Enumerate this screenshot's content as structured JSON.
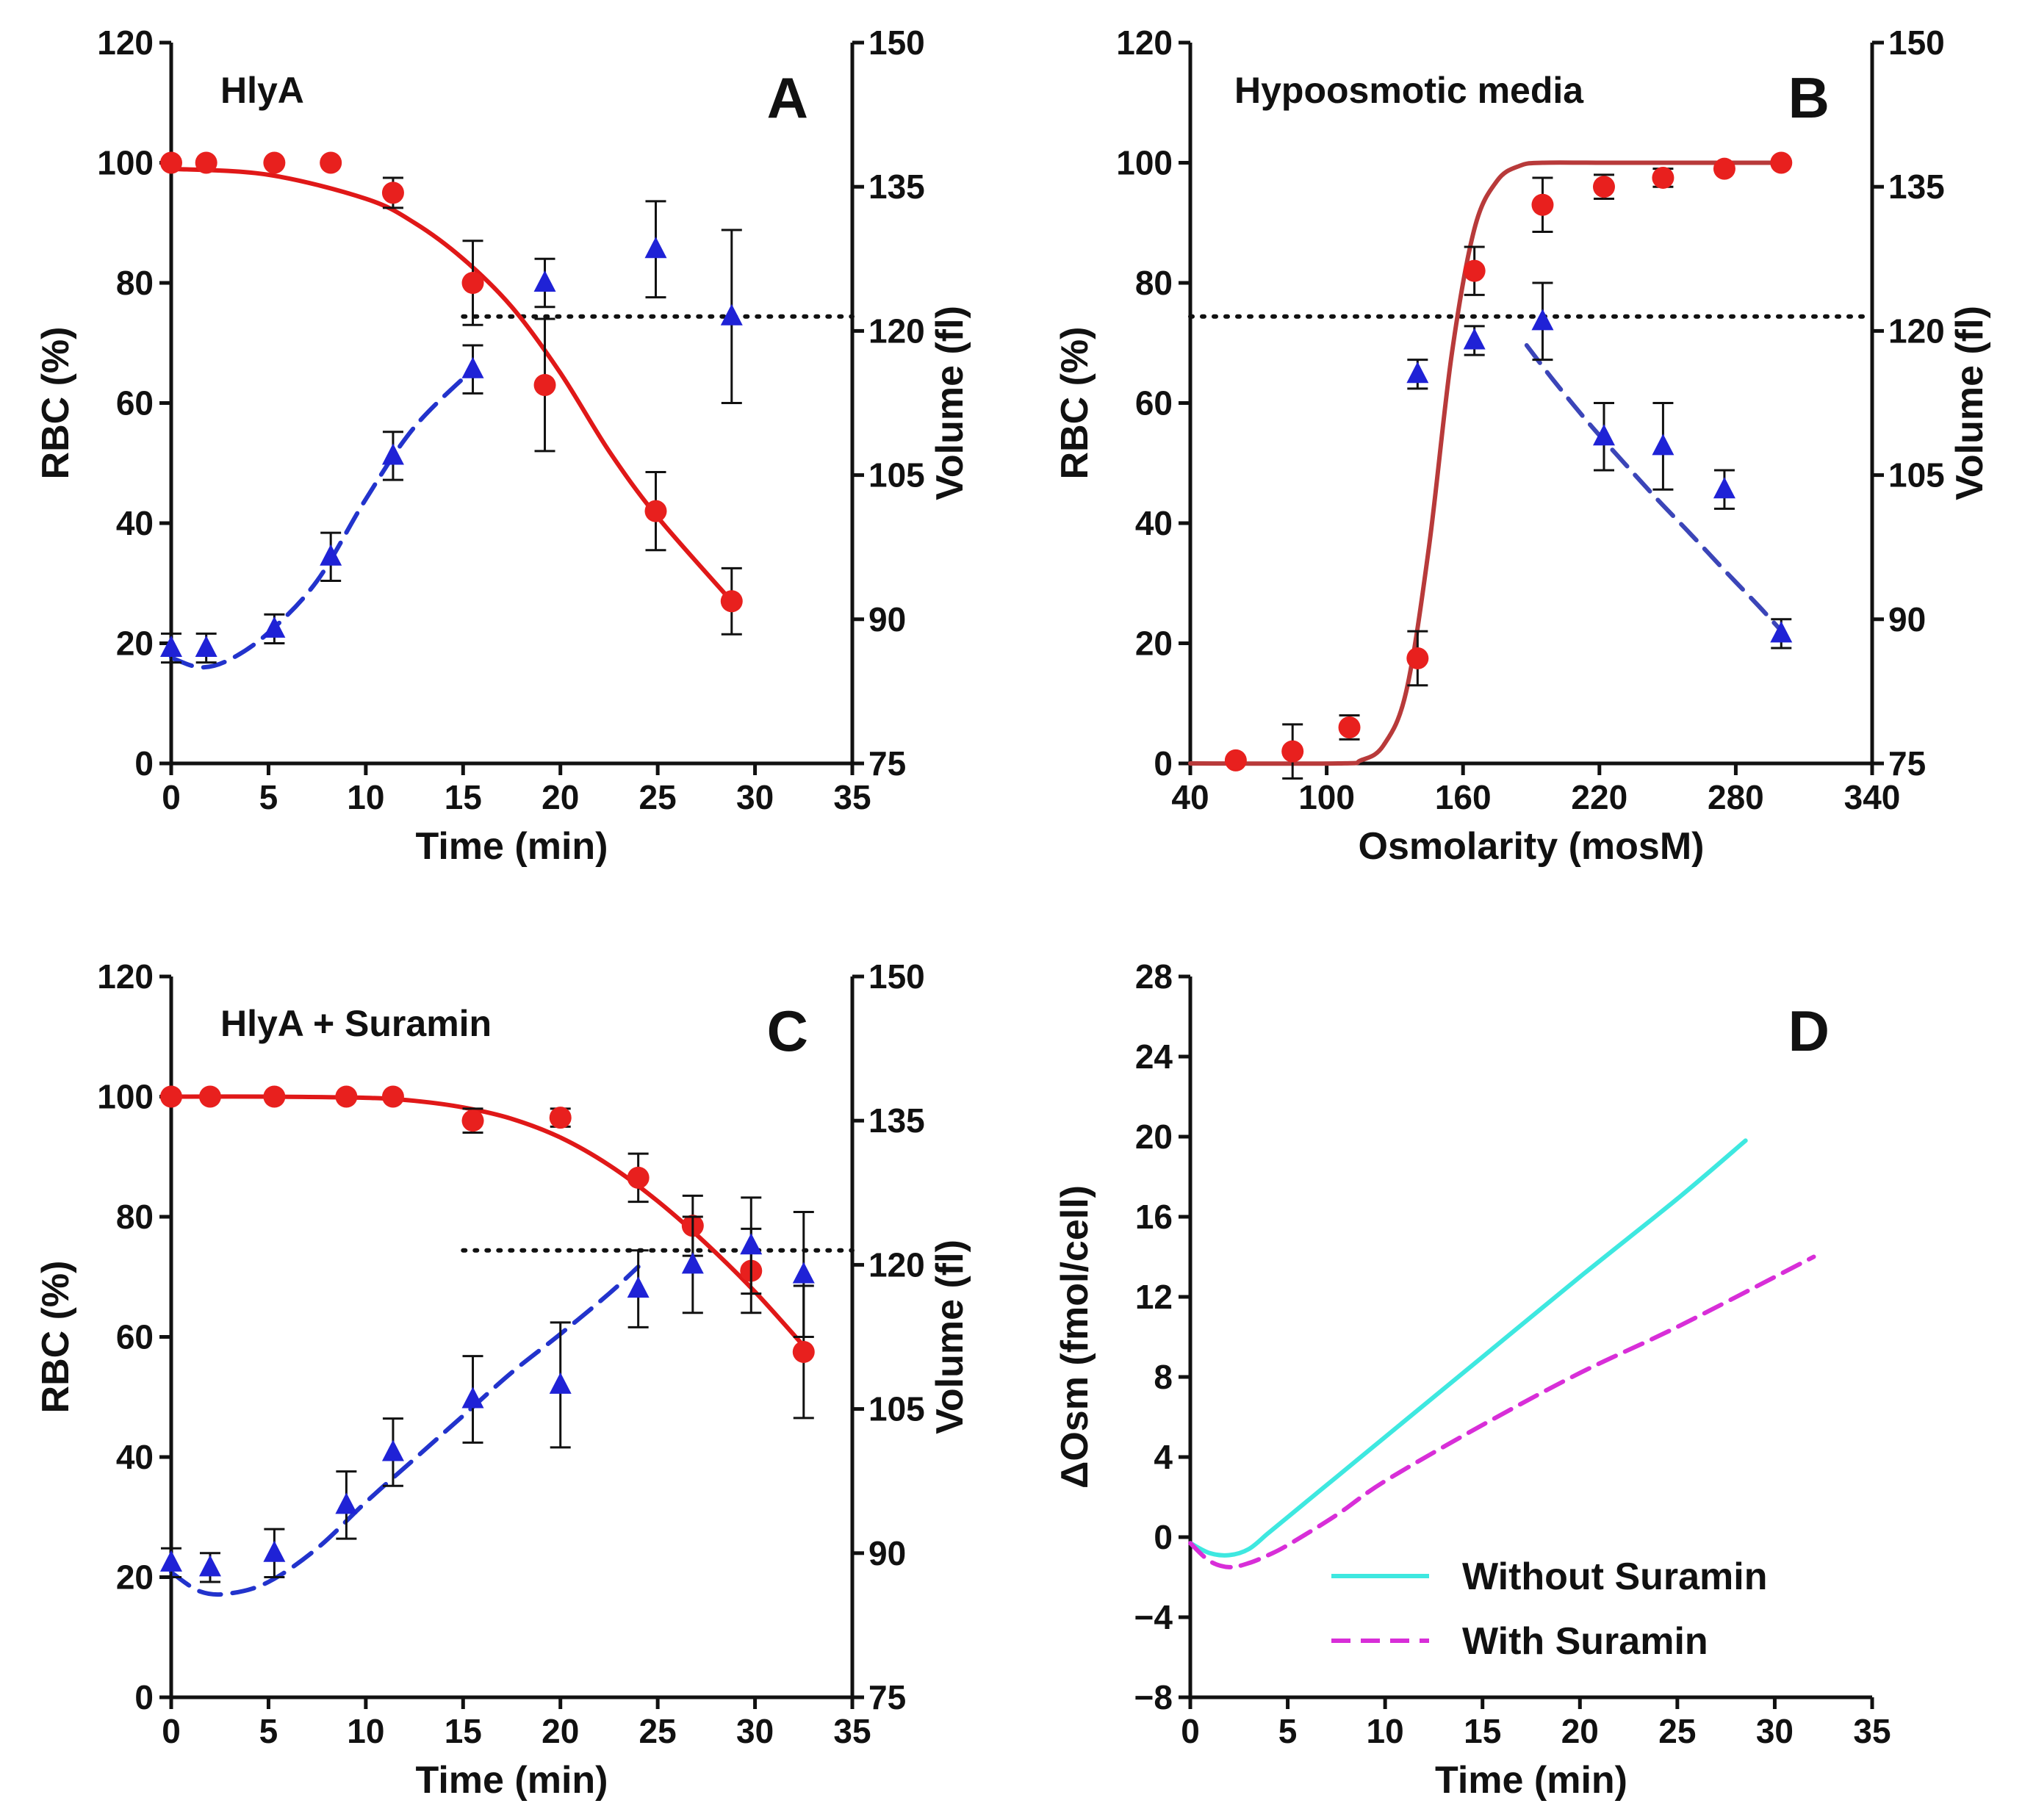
{
  "chart_data": [
    {
      "panel": "A",
      "type": "scatter",
      "title": "HlyA",
      "letter": "A",
      "xlabel": "Time (min)",
      "ylabel": "RBC (%)",
      "y2label": "Volume (fl)",
      "xlim": [
        0,
        35
      ],
      "xticks": [
        0,
        5,
        10,
        15,
        20,
        25,
        30,
        35
      ],
      "ylim": [
        0,
        120
      ],
      "yticks": [
        0,
        20,
        40,
        60,
        80,
        100,
        120
      ],
      "y2lim": [
        75,
        150
      ],
      "y2ticks": [
        75,
        90,
        105,
        120,
        135,
        150
      ],
      "series": [
        {
          "name": "RBC",
          "axis": "y",
          "marker": "circle",
          "color": "#e8201e",
          "x": [
            0,
            1.8,
            5.3,
            8.2,
            11.4,
            15.5,
            19.2,
            24.9,
            28.8
          ],
          "y": [
            100,
            100,
            100,
            100,
            95,
            80,
            63,
            42,
            27
          ],
          "err": [
            0,
            0,
            0,
            0,
            2.5,
            7,
            11,
            6.5,
            5.5
          ]
        },
        {
          "name": "Volume",
          "axis": "y2",
          "marker": "triangle",
          "color": "#1f22d6",
          "x": [
            0,
            1.8,
            5.3,
            8.2,
            11.4,
            15.5,
            19.2,
            24.9,
            28.8
          ],
          "y": [
            87,
            87,
            89,
            96.5,
            107,
            116,
            125,
            128.5,
            121.5
          ],
          "err": [
            1.5,
            1.5,
            1.5,
            2.5,
            2.5,
            2.5,
            2.5,
            5,
            9
          ]
        }
      ],
      "fits": [
        {
          "name": "RBC fit",
          "axis": "y",
          "style": "solid",
          "color": "#e01818",
          "x": [
            0,
            5,
            10,
            12.5,
            15,
            17.5,
            20,
            22.5,
            25,
            28.8
          ],
          "y": [
            99,
            98,
            94,
            90,
            84,
            76,
            65,
            52,
            41,
            27
          ]
        },
        {
          "name": "Volume fit",
          "axis": "y2",
          "style": "dashed",
          "color": "#2233cc",
          "x": [
            0,
            1.5,
            3,
            5,
            7.5,
            10,
            12.5,
            15.5
          ],
          "y": [
            86,
            85,
            85.8,
            88.6,
            94,
            102.5,
            110,
            116
          ]
        }
      ],
      "reference_line": {
        "axis": "y2",
        "value": 121.5,
        "x_from": 15,
        "x_to": 35,
        "style": "dotted"
      }
    },
    {
      "panel": "B",
      "type": "scatter",
      "title": "Hypoosmotic media",
      "letter": "B",
      "xlabel": "Osmolarity (mosM)",
      "ylabel": "RBC (%)",
      "y2label": "Volume (fl)",
      "xlim": [
        40,
        340
      ],
      "xticks": [
        40,
        100,
        160,
        220,
        280,
        340
      ],
      "ylim": [
        0,
        120
      ],
      "yticks": [
        0,
        20,
        40,
        60,
        80,
        100,
        120
      ],
      "y2lim": [
        75,
        150
      ],
      "y2ticks": [
        75,
        90,
        105,
        120,
        135,
        150
      ],
      "series": [
        {
          "name": "RBC",
          "axis": "y",
          "marker": "circle",
          "color": "#e8201e",
          "x": [
            60,
            85,
            110,
            140,
            165,
            195,
            222,
            248,
            275,
            300
          ],
          "y": [
            0.5,
            2,
            6,
            17.5,
            82,
            93,
            96,
            97.5,
            99,
            100
          ],
          "err": [
            0,
            4.5,
            2,
            4.5,
            4,
            4.5,
            2,
            1.5,
            0,
            0
          ]
        },
        {
          "name": "Volume",
          "axis": "y2",
          "marker": "triangle",
          "color": "#1f22d6",
          "x": [
            140,
            165,
            195,
            222,
            248,
            275,
            300
          ],
          "y": [
            115.5,
            119,
            121,
            109,
            108,
            103.5,
            88.5
          ],
          "err": [
            1.5,
            1.5,
            4,
            3.5,
            4.5,
            2,
            1.5
          ]
        }
      ],
      "fits": [
        {
          "name": "RBC fit",
          "axis": "y",
          "style": "solid",
          "color": "#b83a3a",
          "x": [
            40,
            105,
            115,
            125,
            135,
            145,
            155,
            165,
            175,
            185,
            195,
            220,
            250,
            300
          ],
          "y": [
            0,
            0,
            0.5,
            3,
            12,
            36,
            68,
            89,
            97,
            99.5,
            100,
            100,
            100,
            100
          ]
        },
        {
          "name": "Volume fit",
          "axis": "y2",
          "style": "dashed",
          "color": "#3b45b8",
          "x": [
            188,
            200,
            215,
            230,
            245,
            260,
            275,
            290,
            300
          ],
          "y": [
            118.5,
            114.8,
            110.5,
            106.5,
            102.6,
            98.9,
            95.1,
            91.4,
            88.8
          ]
        }
      ],
      "reference_line": {
        "axis": "y2",
        "value": 121.5,
        "x_from": 40,
        "x_to": 340,
        "style": "dotted"
      }
    },
    {
      "panel": "C",
      "type": "scatter",
      "title": "HlyA + Suramin",
      "letter": "C",
      "xlabel": "Time (min)",
      "ylabel": "RBC (%)",
      "y2label": "Volume (fl)",
      "xlim": [
        0,
        35
      ],
      "xticks": [
        0,
        5,
        10,
        15,
        20,
        25,
        30,
        35
      ],
      "ylim": [
        0,
        120
      ],
      "yticks": [
        0,
        20,
        40,
        60,
        80,
        100,
        120
      ],
      "y2lim": [
        75,
        150
      ],
      "y2ticks": [
        75,
        90,
        105,
        120,
        135,
        150
      ],
      "series": [
        {
          "name": "RBC",
          "axis": "y",
          "marker": "circle",
          "color": "#e8201e",
          "x": [
            0,
            2,
            5.3,
            9,
            11.4,
            15.5,
            20,
            24,
            26.8,
            29.8,
            32.5
          ],
          "y": [
            100,
            100,
            100,
            100,
            100,
            96,
            96.5,
            86.5,
            78.5,
            71,
            57.5
          ],
          "err": [
            0,
            0,
            0,
            0,
            0,
            2,
            1.5,
            4,
            5,
            7,
            11
          ]
        },
        {
          "name": "Volume",
          "axis": "y2",
          "marker": "triangle",
          "color": "#1f22d6",
          "x": [
            0,
            2,
            5.3,
            9,
            11.4,
            15.5,
            20,
            24,
            26.8,
            29.8,
            32.5
          ],
          "y": [
            89,
            88.5,
            90,
            95,
            100.5,
            106,
            107.5,
            117.5,
            120,
            122,
            119
          ],
          "err": [
            1.5,
            1.5,
            2.5,
            3.5,
            3.5,
            4.5,
            6.5,
            4,
            5,
            5,
            6.5
          ]
        }
      ],
      "fits": [
        {
          "name": "RBC fit",
          "axis": "y",
          "style": "solid",
          "color": "#e01818",
          "x": [
            0,
            5,
            10,
            12.5,
            15,
            17.5,
            20,
            22.5,
            25,
            27.5,
            30,
            32.5
          ],
          "y": [
            100,
            100,
            99.8,
            99.3,
            98.2,
            96.3,
            93.2,
            88.6,
            82.6,
            75.5,
            67.5,
            58.5
          ]
        },
        {
          "name": "Volume fit",
          "axis": "y2",
          "style": "dashed",
          "color": "#2233cc",
          "x": [
            0,
            1.5,
            3,
            5,
            7.5,
            10,
            12.5,
            15,
            17.5,
            20,
            22.5,
            24
          ],
          "y": [
            88,
            86,
            85.8,
            87,
            90.5,
            95.3,
            99.8,
            104.3,
            108.8,
            112.8,
            117,
            119.8
          ]
        }
      ],
      "reference_line": {
        "axis": "y2",
        "value": 121.5,
        "x_from": 15,
        "x_to": 35,
        "style": "dotted"
      }
    },
    {
      "panel": "D",
      "type": "line",
      "title": "",
      "letter": "D",
      "xlabel": "Time (min)",
      "ylabel": "ΔOsm (fmol/cell)",
      "xlim": [
        0,
        35
      ],
      "xticks": [
        0,
        5,
        10,
        15,
        20,
        25,
        30,
        35
      ],
      "ylim": [
        -8,
        28
      ],
      "yticks": [
        -8,
        -4,
        0,
        4,
        8,
        12,
        16,
        20,
        24,
        28
      ],
      "series": [
        {
          "name": "Without Suramin",
          "style": "solid",
          "color": "#3ee8e0",
          "x": [
            0,
            1,
            2,
            3,
            4,
            5,
            7.5,
            10,
            15,
            20,
            25,
            28.5
          ],
          "y": [
            -0.3,
            -0.8,
            -0.9,
            -0.6,
            0.2,
            1,
            3,
            5,
            9,
            13,
            16.9,
            19.8
          ]
        },
        {
          "name": "With Suramin",
          "style": "dashed",
          "color": "#d82ed8",
          "x": [
            0,
            1,
            2,
            3,
            4,
            5,
            7.5,
            10,
            15,
            20,
            25,
            32
          ],
          "y": [
            -0.3,
            -1.2,
            -1.5,
            -1.3,
            -0.9,
            -0.4,
            1.1,
            2.8,
            5.6,
            8.2,
            10.5,
            14
          ]
        }
      ],
      "legend": {
        "position": "bottom-right",
        "entries": [
          "Without Suramin",
          "With Suramin"
        ]
      }
    }
  ]
}
